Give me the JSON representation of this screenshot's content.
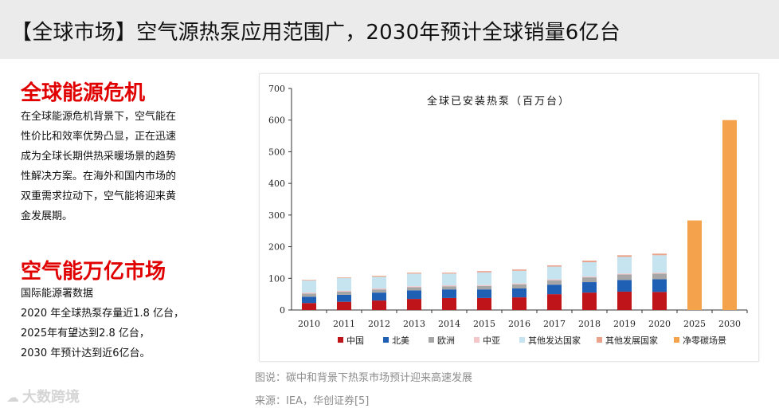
{
  "header": {
    "title": "【全球市场】空气源热泵应用范围广，2030年预计全球销量6亿台"
  },
  "section1": {
    "title": "全球能源危机",
    "lines": [
      "在全球能源危机背景下，空气能在",
      "性价比和效率优势凸显，正在迅速",
      "成为全球长期供热采暖场景的趋势",
      "性解决方案。在海外和国内市场的",
      "双重需求拉动下，空气能将迎来黄",
      "金发展期。"
    ]
  },
  "section2": {
    "title": "空气能万亿市场",
    "lines": [
      "国际能源署数据",
      "2020 年全球热泵存量近1.8 亿台，",
      "2025年有望达到2.8 亿台，",
      "2030 年预计达到近6亿台。"
    ]
  },
  "captions": {
    "figure": "图说：碳中和背景下热泵市场预计迎来高速发展",
    "source": "来源：IEA，华创证券[5]"
  },
  "watermark": {
    "text": "大数跨境",
    "logo": "☁"
  },
  "chart_data": {
    "type": "bar",
    "stacked": true,
    "title": "全球已安装热泵（百万台）",
    "categories": [
      "2010",
      "2011",
      "2012",
      "2013",
      "2014",
      "2015",
      "2016",
      "2017",
      "2018",
      "2019",
      "2020",
      "2025",
      "2030"
    ],
    "ylim": [
      0,
      700
    ],
    "yticks": [
      0,
      100,
      200,
      300,
      400,
      500,
      600,
      700
    ],
    "legend_position": "bottom",
    "series": [
      {
        "name": "中国",
        "color": "#c0141b",
        "values": [
          22,
          26,
          30,
          35,
          38,
          38,
          40,
          50,
          55,
          58,
          57,
          null,
          null
        ]
      },
      {
        "name": "北美",
        "color": "#1f5fb4",
        "values": [
          20,
          22,
          25,
          27,
          27,
          27,
          28,
          30,
          33,
          37,
          40,
          null,
          null
        ]
      },
      {
        "name": "欧洲",
        "color": "#a6a6a6",
        "values": [
          10,
          10,
          10,
          10,
          10,
          11,
          13,
          14,
          15,
          17,
          18,
          null,
          null
        ]
      },
      {
        "name": "中亚",
        "color": "#f4c6c9",
        "values": [
          3,
          3,
          3,
          3,
          3,
          3,
          3,
          3,
          3,
          3,
          3,
          null,
          null
        ]
      },
      {
        "name": "其他发达国家",
        "color": "#c5e4ef",
        "values": [
          38,
          40,
          37,
          40,
          37,
          40,
          40,
          40,
          45,
          53,
          55,
          null,
          null
        ]
      },
      {
        "name": "其他发展国家",
        "color": "#eba28a",
        "values": [
          2,
          2,
          3,
          3,
          3,
          4,
          4,
          4,
          5,
          5,
          5,
          null,
          null
        ]
      },
      {
        "name": "净零碳场景",
        "color": "#f4a24b",
        "values": [
          null,
          null,
          null,
          null,
          null,
          null,
          null,
          null,
          null,
          null,
          null,
          283,
          600
        ]
      }
    ]
  }
}
